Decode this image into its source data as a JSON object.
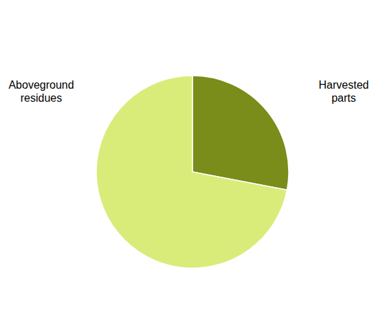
{
  "chart_data": {
    "type": "pie",
    "categories": [
      "Harvested\nparts",
      "Aboveground\nresidues"
    ],
    "values": [
      28,
      72
    ],
    "colors": [
      "#7a8c1a",
      "#d9ec7a"
    ]
  }
}
